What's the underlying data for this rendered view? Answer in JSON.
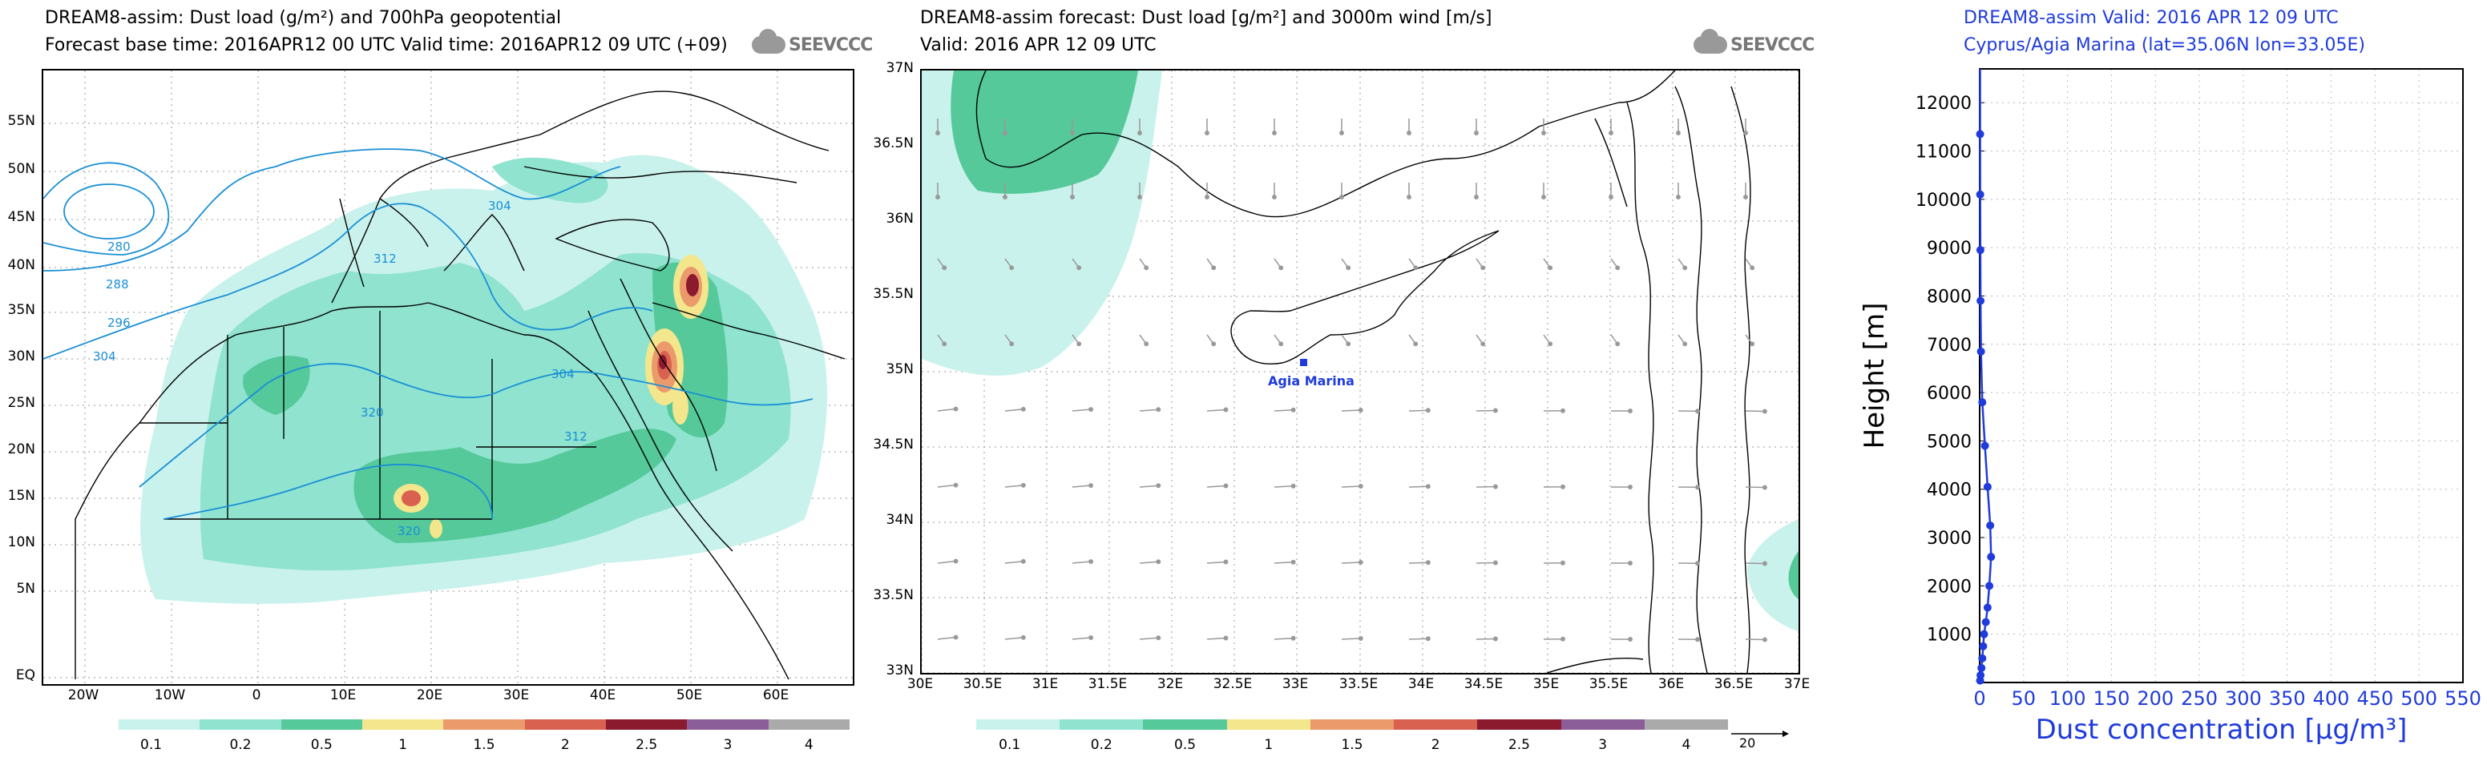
{
  "panel1": {
    "title_line1": "DREAM8-assim: Dust load (g/m²) and 700hPa geopotential",
    "title_line2": "Forecast base time: 2016APR12 00 UTC  Valid time: 2016APR12 09 UTC  (+09)",
    "brand": "SEEVCCC",
    "lat_labels": [
      "55N",
      "50N",
      "45N",
      "40N",
      "35N",
      "30N",
      "25N",
      "20N",
      "15N",
      "10N",
      "5N",
      "EQ"
    ],
    "lon_labels": [
      "20W",
      "10W",
      "0",
      "10E",
      "20E",
      "30E",
      "40E",
      "50E",
      "60E"
    ],
    "contour_labels": [
      "280",
      "288",
      "296",
      "304",
      "304",
      "312",
      "304",
      "320",
      "320",
      "312"
    ],
    "colorbar": {
      "labels": [
        "0.1",
        "0.2",
        "0.5",
        "1",
        "1.5",
        "2",
        "2.5",
        "3",
        "4"
      ],
      "colors": [
        "#c9f2ec",
        "#8fe3cf",
        "#55c99a",
        "#f4e68c",
        "#eb9a6c",
        "#d9614f",
        "#8b1a2f",
        "#8b5e9a",
        "#aaaaaa"
      ]
    }
  },
  "panel2": {
    "title_line1": "DREAM8-assim forecast: Dust load [g/m²] and 3000m wind [m/s]",
    "title_line2": "Valid: 2016 APR 12  09 UTC",
    "brand": "SEEVCCC",
    "lat_labels": [
      "37N",
      "36.5N",
      "36N",
      "35.5N",
      "35N",
      "34.5N",
      "34N",
      "33.5N",
      "33N"
    ],
    "lon_labels": [
      "30E",
      "30.5E",
      "31E",
      "31.5E",
      "32E",
      "32.5E",
      "33E",
      "33.5E",
      "34E",
      "34.5E",
      "35E",
      "35.5E",
      "36E",
      "36.5E",
      "37E"
    ],
    "station_label": "Agia Marina",
    "vector_ref": "20",
    "colorbar": {
      "labels": [
        "0.1",
        "0.2",
        "0.5",
        "1",
        "1.5",
        "2",
        "2.5",
        "3",
        "4"
      ],
      "colors": [
        "#c9f2ec",
        "#8fe3cf",
        "#55c99a",
        "#f4e68c",
        "#eb9a6c",
        "#d9614f",
        "#8b1a2f",
        "#8b5e9a",
        "#aaaaaa"
      ]
    }
  },
  "panel3": {
    "title_line1": "DREAM8-assim   Valid: 2016 APR 12   09 UTC",
    "title_line2": "Cyprus/Agia Marina (lat=35.06N lon=33.05E)",
    "accent": "#1f3bdc"
  },
  "chart_data": {
    "type": "line",
    "xlabel": "Dust concentration [μg/m³]",
    "ylabel": "Height [m]",
    "xlim": [
      0,
      550
    ],
    "ylim": [
      0,
      12700
    ],
    "x_ticks": [
      0,
      50,
      100,
      150,
      200,
      250,
      300,
      350,
      400,
      450,
      500,
      550
    ],
    "y_ticks": [
      1000,
      2000,
      3000,
      4000,
      5000,
      6000,
      7000,
      8000,
      9000,
      10000,
      11000,
      12000
    ],
    "grid": true,
    "series": [
      {
        "x": [
          0.5,
          1,
          2,
          3,
          4,
          5,
          7,
          9,
          11,
          13,
          12,
          9,
          6,
          3,
          1.5,
          1,
          0.8,
          0.6,
          0.5
        ],
        "y": [
          40,
          150,
          300,
          500,
          750,
          1000,
          1250,
          1550,
          2000,
          2600,
          3250,
          4050,
          4900,
          5800,
          6850,
          7900,
          8950,
          10100,
          11350
        ]
      }
    ]
  }
}
